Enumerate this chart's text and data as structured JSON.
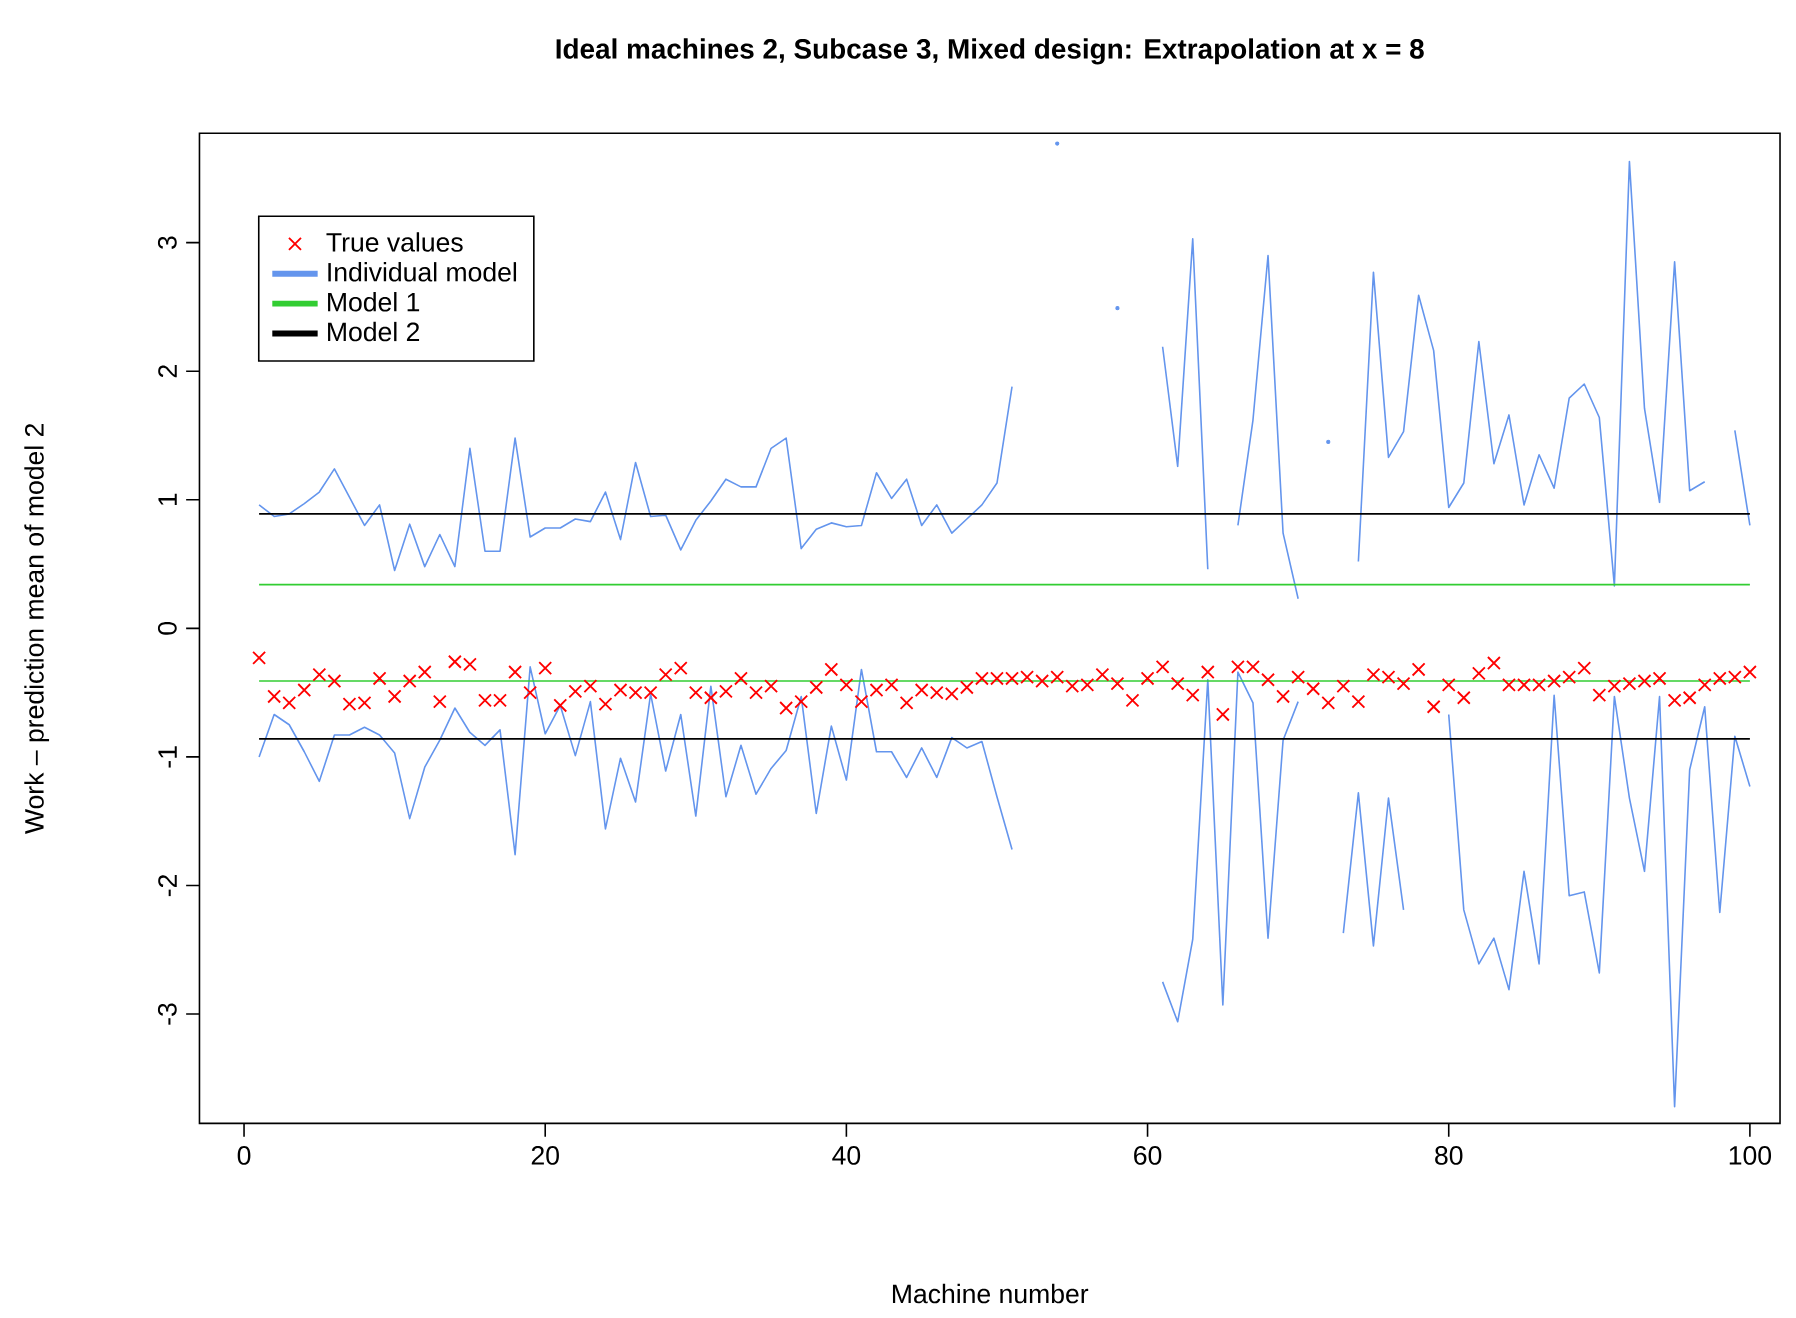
{
  "chart_data": {
    "type": "line",
    "title": "Ideal machines 2, Subcase 3, Mixed design: Extrapolation at x = 8",
    "xlabel": "Machine number",
    "ylabel": "Work – prediction mean of model 2",
    "x": [
      1,
      2,
      3,
      4,
      5,
      6,
      7,
      8,
      9,
      10,
      11,
      12,
      13,
      14,
      15,
      16,
      17,
      18,
      19,
      20,
      21,
      22,
      23,
      24,
      25,
      26,
      27,
      28,
      29,
      30,
      31,
      32,
      33,
      34,
      35,
      36,
      37,
      38,
      39,
      40,
      41,
      42,
      43,
      44,
      45,
      46,
      47,
      48,
      49,
      50,
      51,
      52,
      53,
      54,
      55,
      56,
      57,
      58,
      59,
      60,
      61,
      62,
      63,
      64,
      65,
      66,
      67,
      68,
      69,
      70,
      71,
      72,
      73,
      74,
      75,
      76,
      77,
      78,
      79,
      80,
      81,
      82,
      83,
      84,
      85,
      86,
      87,
      88,
      89,
      90,
      91,
      92,
      93,
      94,
      95,
      96,
      97,
      98,
      99,
      100
    ],
    "xlim": [
      -2.96,
      102
    ],
    "ylim": [
      -3.85,
      3.85
    ],
    "xticks": [
      0,
      20,
      40,
      60,
      80,
      100
    ],
    "yticks": [
      -3,
      -2,
      -1,
      0,
      1,
      2,
      3
    ],
    "grid": false,
    "legend": "top left",
    "series": [
      {
        "name": "True values",
        "type": "scatter",
        "marker": "cross",
        "color": "#ff0000",
        "values": [
          -0.23,
          -0.53,
          -0.58,
          -0.48,
          -0.36,
          -0.41,
          -0.59,
          -0.58,
          -0.39,
          -0.53,
          -0.41,
          -0.34,
          -0.57,
          -0.26,
          -0.28,
          -0.56,
          -0.56,
          -0.34,
          -0.5,
          -0.31,
          -0.6,
          -0.49,
          -0.45,
          -0.59,
          -0.48,
          -0.5,
          -0.5,
          -0.36,
          -0.31,
          -0.5,
          -0.54,
          -0.49,
          -0.39,
          -0.5,
          -0.45,
          -0.62,
          -0.57,
          -0.46,
          -0.32,
          -0.44,
          -0.57,
          -0.48,
          -0.44,
          -0.58,
          -0.48,
          -0.5,
          -0.51,
          -0.46,
          -0.39,
          -0.39,
          -0.39,
          -0.38,
          -0.41,
          -0.38,
          -0.45,
          -0.44,
          -0.36,
          -0.43,
          -0.56,
          -0.39,
          -0.3,
          -0.43,
          -0.52,
          -0.34,
          -0.67,
          -0.3,
          -0.3,
          -0.4,
          -0.53,
          -0.38,
          -0.47,
          -0.58,
          -0.45,
          -0.57,
          -0.36,
          -0.38,
          -0.43,
          -0.32,
          -0.61,
          -0.44,
          -0.54,
          -0.35,
          -0.27,
          -0.44,
          -0.44,
          -0.44,
          -0.41,
          -0.38,
          -0.31,
          -0.52,
          -0.45,
          -0.43,
          -0.41,
          -0.39,
          -0.56,
          -0.54,
          -0.44,
          -0.39,
          -0.38,
          -0.34
        ]
      },
      {
        "name": "Individual model",
        "color": "#6495ed",
        "values": [
          0.96,
          0.87,
          0.89,
          0.97,
          1.06,
          1.24,
          1.02,
          0.8,
          0.96,
          0.45,
          0.81,
          0.48,
          0.73,
          0.48,
          1.4,
          0.6,
          0.6,
          1.48,
          0.71,
          0.78,
          0.78,
          0.85,
          0.83,
          1.06,
          0.69,
          1.29,
          0.87,
          0.88,
          0.61,
          0.84,
          0.99,
          1.16,
          1.1,
          1.1,
          1.4,
          1.48,
          0.62,
          0.77,
          0.82,
          0.79,
          0.8,
          1.21,
          1.01,
          1.16,
          0.8,
          0.96,
          0.74,
          0.85,
          0.96,
          1.13,
          1.88,
          null,
          null,
          3.77,
          null,
          null,
          null,
          2.49,
          null,
          null,
          2.19,
          1.26,
          3.03,
          0.46,
          null,
          0.8,
          1.62,
          2.9,
          0.74,
          0.23,
          null,
          1.45,
          null,
          0.52,
          2.77,
          1.33,
          1.53,
          2.59,
          2.16,
          0.94,
          1.13,
          2.23,
          1.28,
          1.66,
          0.96,
          1.35,
          1.09,
          1.79,
          1.9,
          1.64,
          0.33,
          3.63,
          1.71,
          0.98,
          2.85,
          1.07,
          1.14,
          null,
          1.54,
          0.8
        ]
      },
      {
        "color": "#6495ed",
        "values": [
          -1.0,
          -0.67,
          -0.75,
          -0.96,
          -1.19,
          -0.83,
          -0.83,
          -0.77,
          -0.83,
          -0.97,
          -1.48,
          -1.08,
          -0.87,
          -0.62,
          -0.81,
          -0.91,
          -0.79,
          -1.76,
          -0.3,
          -0.82,
          -0.6,
          -0.99,
          -0.57,
          -1.56,
          -1.01,
          -1.35,
          -0.51,
          -1.11,
          -0.67,
          -1.46,
          -0.45,
          -1.31,
          -0.91,
          -1.29,
          -1.09,
          -0.95,
          -0.53,
          -1.44,
          -0.76,
          -1.18,
          -0.32,
          -0.96,
          -0.96,
          -1.16,
          -0.93,
          -1.16,
          -0.85,
          -0.93,
          -0.88,
          -1.31,
          -1.72,
          null,
          null,
          null,
          null,
          null,
          null,
          null,
          null,
          null,
          -2.75,
          -3.06,
          -2.42,
          -0.4,
          -2.93,
          -0.34,
          -0.58,
          -2.41,
          -0.87,
          -0.57,
          null,
          null,
          -2.37,
          -1.28,
          -2.47,
          -1.32,
          -2.19,
          null,
          null,
          -0.67,
          -2.19,
          -2.61,
          -2.41,
          -2.81,
          -1.89,
          -2.61,
          -0.52,
          -2.08,
          -2.05,
          -2.68,
          -0.53,
          -1.32,
          -1.89,
          -0.53,
          -3.72,
          -1.1,
          -0.61,
          -2.21,
          -0.84,
          -1.23
        ]
      },
      {
        "name": "Model 1",
        "color": "#32cd32",
        "values": [
          0.34,
          0.34,
          0.34,
          0.34,
          0.34,
          0.34,
          0.34,
          0.34,
          0.34,
          0.34,
          0.34,
          0.34,
          0.34,
          0.34,
          0.34,
          0.34,
          0.34,
          0.34,
          0.34,
          0.34,
          0.34,
          0.34,
          0.34,
          0.34,
          0.34,
          0.34,
          0.34,
          0.34,
          0.34,
          0.34,
          0.34,
          0.34,
          0.34,
          0.34,
          0.34,
          0.34,
          0.34,
          0.34,
          0.34,
          0.34,
          0.34,
          0.34,
          0.34,
          0.34,
          0.34,
          0.34,
          0.34,
          0.34,
          0.34,
          0.34,
          0.34,
          0.34,
          0.34,
          0.34,
          0.34,
          0.34,
          0.34,
          0.34,
          0.34,
          0.34,
          0.34,
          0.34,
          0.34,
          0.34,
          0.34,
          0.34,
          0.34,
          0.34,
          0.34,
          0.34,
          0.34,
          0.34,
          0.34,
          0.34,
          0.34,
          0.34,
          0.34,
          0.34,
          0.34,
          0.34,
          0.34,
          0.34,
          0.34,
          0.34,
          0.34,
          0.34,
          0.34,
          0.34,
          0.34,
          0.34,
          0.34,
          0.34,
          0.34,
          0.34,
          0.34,
          0.34,
          0.34,
          0.34,
          0.34,
          0.34
        ]
      },
      {
        "color": "#32cd32",
        "values": [
          -0.41,
          -0.41,
          -0.41,
          -0.41,
          -0.41,
          -0.41,
          -0.41,
          -0.41,
          -0.41,
          -0.41,
          -0.41,
          -0.41,
          -0.41,
          -0.41,
          -0.41,
          -0.41,
          -0.41,
          -0.41,
          -0.41,
          -0.41,
          -0.41,
          -0.41,
          -0.41,
          -0.41,
          -0.41,
          -0.41,
          -0.41,
          -0.41,
          -0.41,
          -0.41,
          -0.41,
          -0.41,
          -0.41,
          -0.41,
          -0.41,
          -0.41,
          -0.41,
          -0.41,
          -0.41,
          -0.41,
          -0.41,
          -0.41,
          -0.41,
          -0.41,
          -0.41,
          -0.41,
          -0.41,
          -0.41,
          -0.41,
          -0.41,
          -0.41,
          -0.41,
          -0.41,
          -0.41,
          -0.41,
          -0.41,
          -0.41,
          -0.41,
          -0.41,
          -0.41,
          -0.41,
          -0.41,
          -0.41,
          -0.41,
          -0.41,
          -0.41,
          -0.41,
          -0.41,
          -0.41,
          -0.41,
          -0.41,
          -0.41,
          -0.41,
          -0.41,
          -0.41,
          -0.41,
          -0.41,
          -0.41,
          -0.41,
          -0.41,
          -0.41,
          -0.41,
          -0.41,
          -0.41,
          -0.41,
          -0.41,
          -0.41,
          -0.41,
          -0.41,
          -0.41,
          -0.41,
          -0.41,
          -0.41,
          -0.41,
          -0.41,
          -0.41,
          -0.41,
          -0.41,
          -0.41,
          -0.41
        ]
      },
      {
        "name": "Model 2",
        "color": "#000000",
        "values": [
          0.89,
          0.89,
          0.89,
          0.89,
          0.89,
          0.89,
          0.89,
          0.89,
          0.89,
          0.89,
          0.89,
          0.89,
          0.89,
          0.89,
          0.89,
          0.89,
          0.89,
          0.89,
          0.89,
          0.89,
          0.89,
          0.89,
          0.89,
          0.89,
          0.89,
          0.89,
          0.89,
          0.89,
          0.89,
          0.89,
          0.89,
          0.89,
          0.89,
          0.89,
          0.89,
          0.89,
          0.89,
          0.89,
          0.89,
          0.89,
          0.89,
          0.89,
          0.89,
          0.89,
          0.89,
          0.89,
          0.89,
          0.89,
          0.89,
          0.89,
          0.89,
          0.89,
          0.89,
          0.89,
          0.89,
          0.89,
          0.89,
          0.89,
          0.89,
          0.89,
          0.89,
          0.89,
          0.89,
          0.89,
          0.89,
          0.89,
          0.89,
          0.89,
          0.89,
          0.89,
          0.89,
          0.89,
          0.89,
          0.89,
          0.89,
          0.89,
          0.89,
          0.89,
          0.89,
          0.89,
          0.89,
          0.89,
          0.89,
          0.89,
          0.89,
          0.89,
          0.89,
          0.89,
          0.89,
          0.89,
          0.89,
          0.89,
          0.89,
          0.89,
          0.89,
          0.89,
          0.89,
          0.89,
          0.89,
          0.89
        ]
      },
      {
        "color": "#000000",
        "values": [
          -0.86,
          -0.86,
          -0.86,
          -0.86,
          -0.86,
          -0.86,
          -0.86,
          -0.86,
          -0.86,
          -0.86,
          -0.86,
          -0.86,
          -0.86,
          -0.86,
          -0.86,
          -0.86,
          -0.86,
          -0.86,
          -0.86,
          -0.86,
          -0.86,
          -0.86,
          -0.86,
          -0.86,
          -0.86,
          -0.86,
          -0.86,
          -0.86,
          -0.86,
          -0.86,
          -0.86,
          -0.86,
          -0.86,
          -0.86,
          -0.86,
          -0.86,
          -0.86,
          -0.86,
          -0.86,
          -0.86,
          -0.86,
          -0.86,
          -0.86,
          -0.86,
          -0.86,
          -0.86,
          -0.86,
          -0.86,
          -0.86,
          -0.86,
          -0.86,
          -0.86,
          -0.86,
          -0.86,
          -0.86,
          -0.86,
          -0.86,
          -0.86,
          -0.86,
          -0.86,
          -0.86,
          -0.86,
          -0.86,
          -0.86,
          -0.86,
          -0.86,
          -0.86,
          -0.86,
          -0.86,
          -0.86,
          -0.86,
          -0.86,
          -0.86,
          -0.86,
          -0.86,
          -0.86,
          -0.86,
          -0.86,
          -0.86,
          -0.86,
          -0.86,
          -0.86,
          -0.86,
          -0.86,
          -0.86,
          -0.86,
          -0.86,
          -0.86,
          -0.86,
          -0.86,
          -0.86,
          -0.86,
          -0.86,
          -0.86,
          -0.86,
          -0.86,
          -0.86,
          -0.86,
          -0.86,
          -0.86
        ]
      }
    ]
  }
}
